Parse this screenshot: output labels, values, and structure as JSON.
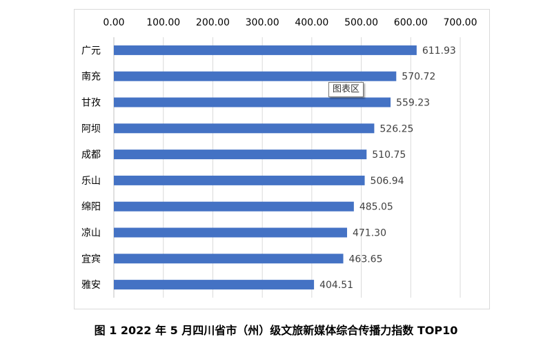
{
  "chart_data": {
    "type": "bar",
    "orientation": "horizontal",
    "categories": [
      "广元",
      "南充",
      "甘孜",
      "阿坝",
      "成都",
      "乐山",
      "绵阳",
      "凉山",
      "宜宾",
      "雅安"
    ],
    "values": [
      611.93,
      570.72,
      559.23,
      526.25,
      510.75,
      506.94,
      485.05,
      471.3,
      463.65,
      404.51
    ],
    "value_labels": [
      "611.93",
      "570.72",
      "559.23",
      "526.25",
      "510.75",
      "506.94",
      "485.05",
      "471.30",
      "463.65",
      "404.51"
    ],
    "xlim": [
      0,
      700
    ],
    "xticks": [
      "0.00",
      "100.00",
      "200.00",
      "300.00",
      "400.00",
      "500.00",
      "600.00",
      "700.00"
    ],
    "x_axis_position": "top",
    "grid": true,
    "bar_color": "#4472C4",
    "title": "",
    "xlabel": "",
    "ylabel": ""
  },
  "tooltip": {
    "text": "图表区"
  },
  "caption": "图 1 2022 年 5 月四川省市（州）级文旅新媒体综合传播力指数 TOP10"
}
